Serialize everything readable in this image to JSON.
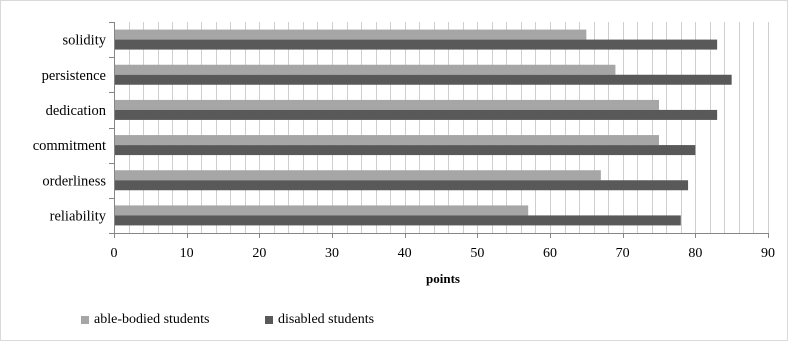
{
  "chart_data": {
    "type": "bar",
    "orientation": "horizontal",
    "categories": [
      "solidity",
      "persistence",
      "dedication",
      "commitment",
      "orderliness",
      "reliability"
    ],
    "series": [
      {
        "name": "able-bodied students",
        "values": [
          65,
          69,
          75,
          75,
          67,
          57
        ],
        "color": "#a6a6a6"
      },
      {
        "name": "disabled students",
        "values": [
          83,
          85,
          83,
          80,
          79,
          78
        ],
        "color": "#595959"
      }
    ],
    "xlabel": "points",
    "ylabel": "",
    "xlim": [
      0,
      90
    ],
    "x_ticks": [
      "0",
      "10",
      "20",
      "30",
      "40",
      "50",
      "60",
      "70",
      "80",
      "90"
    ],
    "grid": "vertical",
    "legend_position": "bottom-left"
  }
}
